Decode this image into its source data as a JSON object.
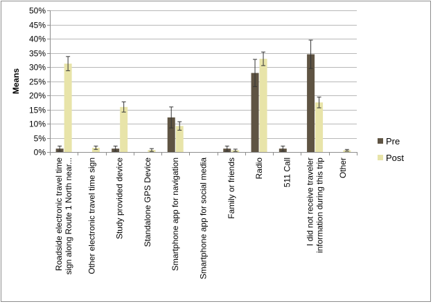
{
  "chart_data": {
    "type": "bar",
    "title": "",
    "xlabel": "",
    "ylabel": "Means",
    "ylim": [
      0,
      0.5
    ],
    "ytick_step": 0.05,
    "ytick_labels": [
      "0%",
      "5%",
      "10%",
      "15%",
      "20%",
      "25%",
      "30%",
      "35%",
      "40%",
      "45%",
      "50%"
    ],
    "grid": true,
    "legend_position": "right",
    "categories": [
      [
        "Roadside electronic travel time",
        "sign along Route 1 North near..."
      ],
      [
        "Other electronic travel time sign"
      ],
      [
        "Study provided device"
      ],
      [
        "Standalone GPS Device"
      ],
      [
        "Smartphone app for navigation"
      ],
      [
        "Smartphone app for social media"
      ],
      [
        "Family or friends"
      ],
      [
        "Radio"
      ],
      [
        "511 Call"
      ],
      [
        "I did not receive traveler",
        "information during this trip"
      ],
      [
        "Other"
      ]
    ],
    "series": [
      {
        "name": "Pre",
        "color": "#5f5443",
        "values": [
          0.012,
          0.0,
          0.012,
          0.0,
          0.122,
          0.0,
          0.012,
          0.279,
          0.012,
          0.345,
          0.0
        ],
        "errors": [
          0.009,
          0.0,
          0.009,
          0.0,
          0.037,
          0.0,
          0.009,
          0.048,
          0.009,
          0.05,
          0.0
        ]
      },
      {
        "name": "Post",
        "color": "#e8e4a9",
        "values": [
          0.312,
          0.015,
          0.159,
          0.007,
          0.092,
          0.0,
          0.006,
          0.329,
          0.0,
          0.175,
          0.006
        ],
        "errors": [
          0.025,
          0.006,
          0.018,
          0.005,
          0.015,
          0.0,
          0.004,
          0.024,
          0.0,
          0.019,
          0.003
        ]
      }
    ]
  }
}
